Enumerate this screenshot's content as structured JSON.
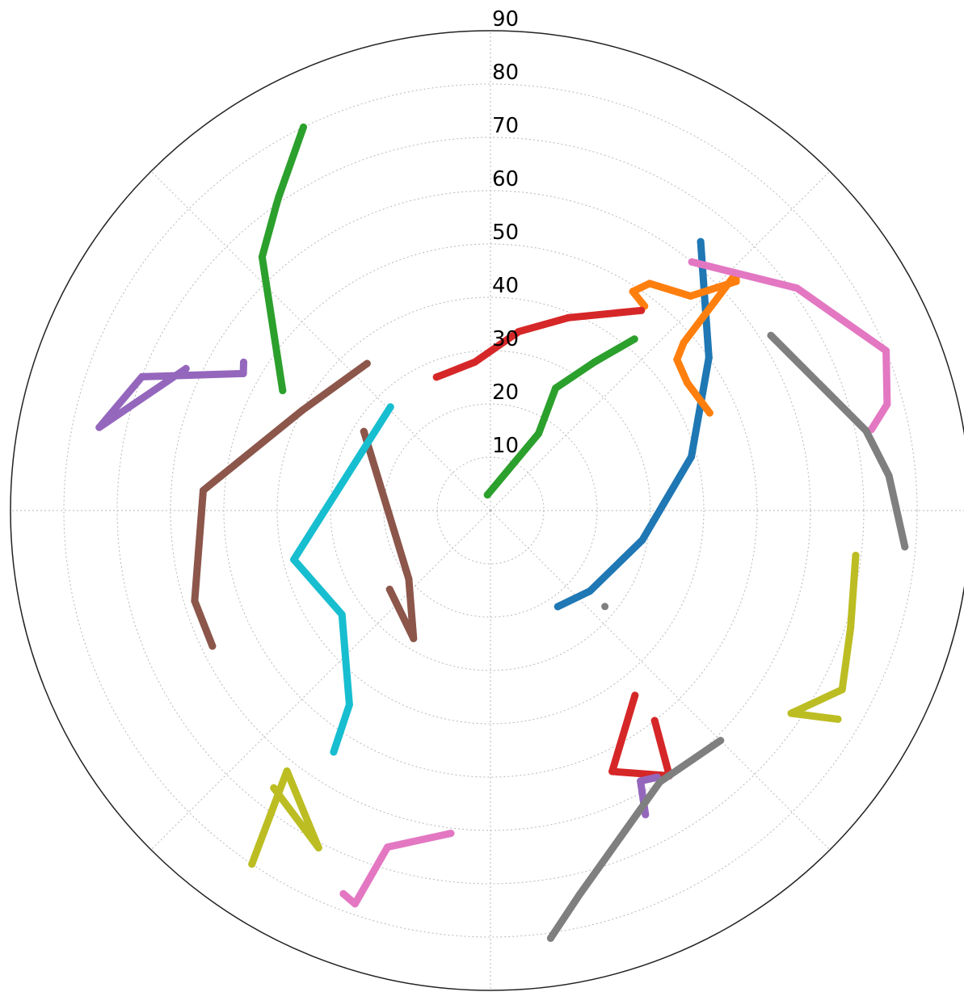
{
  "chart_data": {
    "type": "scatter",
    "projection": "polar",
    "title": "",
    "theta_direction": "clockwise",
    "theta_zero": "north",
    "radial_axis": {
      "inverted": true,
      "range": [
        90,
        0
      ],
      "tick_labels": [
        "10",
        "20",
        "30",
        "40",
        "50",
        "60",
        "70",
        "80",
        "90"
      ]
    },
    "angular_gridlines_deg": [
      0,
      45,
      90,
      135,
      180,
      225,
      270,
      315
    ],
    "grid": true,
    "legend": "none",
    "series": [
      {
        "color": "#1f77b4",
        "points": [
          [
            38,
            64
          ],
          [
            55,
            50
          ],
          [
            75,
            39
          ],
          [
            101,
            29
          ],
          [
            129,
            24
          ],
          [
            145,
            22
          ]
        ]
      },
      {
        "color": "#ff7f0e",
        "points": [
          [
            37,
            48
          ],
          [
            33,
            49
          ],
          [
            35,
            52
          ],
          [
            43,
            55
          ],
          [
            47,
            63
          ],
          [
            46,
            64
          ],
          [
            49,
            48
          ],
          [
            51,
            45
          ],
          [
            57,
            44
          ],
          [
            66,
            45
          ]
        ]
      },
      {
        "color": "#2ca02c",
        "points": [
          [
            349,
            3
          ],
          [
            32,
            17
          ],
          [
            28,
            26
          ],
          [
            35,
            34
          ],
          [
            40,
            42
          ],
          [
            300,
            45
          ],
          [
            318,
            64
          ],
          [
            325,
            70
          ],
          [
            326,
            71
          ],
          [
            334,
            80
          ]
        ]
      },
      {
        "color": "#d62728",
        "points": [
          [
            37,
            47
          ],
          [
            22,
            39
          ],
          [
            9,
            34
          ],
          [
            354,
            28
          ],
          [
            341,
            27
          ],
          [
            338,
            27
          ],
          [
            142,
            44
          ],
          [
            155,
            54
          ],
          [
            146,
            60
          ],
          [
            142,
            50
          ]
        ]
      },
      {
        "color": "#9467bd",
        "points": [
          [
            295,
            63
          ],
          [
            282,
            75
          ],
          [
            291,
            70
          ],
          [
            299,
            53
          ],
          [
            301,
            54
          ],
          [
            153,
            64
          ],
          [
            151,
            58
          ],
          [
            148,
            59
          ]
        ]
      },
      {
        "color": "#8c564b",
        "points": [
          [
            320,
            36
          ],
          [
            298,
            40
          ],
          [
            274,
            54
          ],
          [
            253,
            58
          ],
          [
            244,
            58
          ],
          [
            302,
            28
          ],
          [
            230,
            20
          ],
          [
            211,
            28
          ],
          [
            232,
            24
          ]
        ]
      },
      {
        "color": "#e377c2",
        "points": [
          [
            39,
            60
          ],
          [
            54,
            71
          ],
          [
            68,
            80
          ],
          [
            75,
            77
          ],
          [
            78,
            73
          ],
          [
            187,
            61
          ],
          [
            197,
            66
          ],
          [
            199,
            78
          ],
          [
            201,
            77
          ]
        ]
      },
      {
        "color": "#7f7f7f",
        "points": [
          [
            130,
            28
          ],
          [
            58,
            62
          ],
          [
            78,
            72
          ],
          [
            85,
            75
          ],
          [
            95,
            78
          ],
          [
            135,
            61
          ],
          [
            148,
            60
          ],
          [
            167,
            74
          ],
          [
            172,
            81
          ]
        ]
      },
      {
        "color": "#bcbd22",
        "points": [
          [
            97,
            69
          ],
          [
            108,
            71
          ],
          [
            117,
            74
          ],
          [
            124,
            68
          ],
          [
            121,
            76
          ],
          [
            214,
            80
          ],
          [
            218,
            62
          ],
          [
            207,
            71
          ],
          [
            218,
            66
          ]
        ]
      },
      {
        "color": "#17becf",
        "points": [
          [
            316,
            27
          ],
          [
            256,
            38
          ],
          [
            235,
            34
          ],
          [
            216,
            45
          ],
          [
            213,
            54
          ]
        ]
      }
    ]
  }
}
